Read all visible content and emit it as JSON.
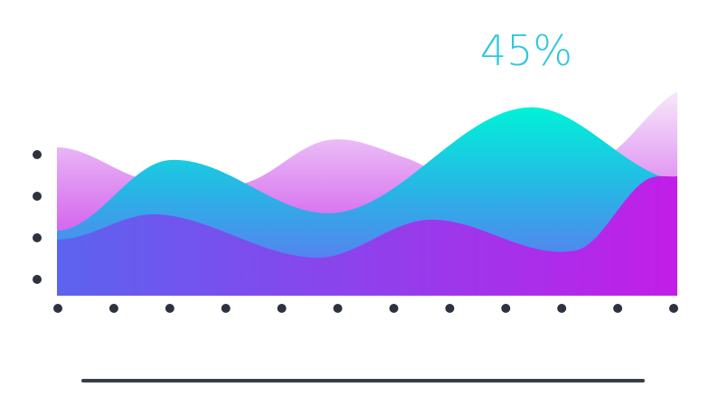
{
  "chart_data": {
    "type": "area",
    "title": "",
    "xlabel": "",
    "ylabel": "",
    "x_tick_count": 12,
    "y_tick_count": 4,
    "grid": false,
    "legend": "none",
    "xlim": [
      0,
      11
    ],
    "ylim": [
      0,
      100
    ],
    "callout": {
      "label": "45%",
      "color": "#2fc8dc"
    },
    "series": [
      {
        "style": "pink-gradient",
        "values": [
          {
            "x": 0,
            "y": 82
          },
          {
            "x": 1.6,
            "y": 64
          },
          {
            "x": 3.3,
            "y": 62
          },
          {
            "x": 4.8,
            "y": 86
          },
          {
            "x": 6.2,
            "y": 76
          },
          {
            "x": 7.3,
            "y": 60
          },
          {
            "x": 8.6,
            "y": 60
          },
          {
            "x": 9.8,
            "y": 78
          },
          {
            "x": 11,
            "y": 113
          }
        ]
      },
      {
        "style": "teal-blue-gradient",
        "values": [
          {
            "x": 0,
            "y": 36
          },
          {
            "x": 2,
            "y": 75
          },
          {
            "x": 5,
            "y": 46
          },
          {
            "x": 8.3,
            "y": 104
          },
          {
            "x": 10.8,
            "y": 65
          }
        ]
      },
      {
        "style": "blue-purple-gradient",
        "values": [
          {
            "x": 0,
            "y": 31
          },
          {
            "x": 1.8,
            "y": 45
          },
          {
            "x": 4.6,
            "y": 21
          },
          {
            "x": 6.6,
            "y": 42
          },
          {
            "x": 9.2,
            "y": 25
          },
          {
            "x": 10.4,
            "y": 63
          },
          {
            "x": 11,
            "y": 66
          }
        ]
      }
    ],
    "colors": {
      "pink_top": "#f7e9fa",
      "pink_bottom": "#d66cef",
      "teal_top": "#00f2d8",
      "teal_mid": "#29b4e6",
      "teal_bottom": "#5a7df0",
      "purple_left": "#5c63ef",
      "purple_right": "#c21ee8",
      "dot": "#2e3240",
      "baseline": "#3a3e4a"
    }
  }
}
